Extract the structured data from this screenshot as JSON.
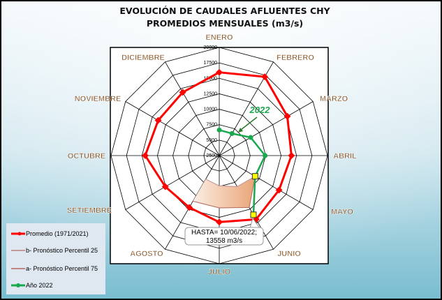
{
  "chart_data": {
    "type": "radar",
    "title": "EVOLUCIÓN DE CAUDALES AFLUENTES CHY",
    "subtitle": "PROMEDIOS MENSUALES (m3/s)",
    "categories": [
      "ENERO",
      "FEBRERO",
      "MARZO",
      "ABRIL",
      "MAYO",
      "JUNIO",
      "JULIO",
      "AGOSTO",
      "SETIEMBRE",
      "OCTUBRE",
      "NOVIEMBRE",
      "DICIEMBRE"
    ],
    "rlim": [
      2500,
      20000
    ],
    "ticks": [
      "2500",
      "5000",
      "7500",
      "10000",
      "12500",
      "15000",
      "17500",
      "20000"
    ],
    "tick_values": [
      2500,
      5000,
      7500,
      10000,
      12500,
      15000,
      17500,
      20000
    ],
    "grid": true,
    "legend_position": "bottom-left",
    "series": [
      {
        "name": "Promedio (1971/2021)",
        "color": "#ff0000",
        "values": [
          15970,
          17220,
          15210,
          14170,
          13660,
          14420,
          13260,
          12190,
          12570,
          14470,
          13900,
          14320
        ]
      },
      {
        "name": "b- Pronóstico Percentil 25",
        "color": "#c49a9a",
        "values": [
          null,
          null,
          null,
          null,
          9200,
          8300,
          7400,
          6900,
          null,
          null,
          null,
          null
        ]
      },
      {
        "name": "a- Pronóstico Percentil 75",
        "color": "#b5655a",
        "values": [
          null,
          null,
          null,
          null,
          9200,
          12200,
          10970,
          11020,
          null,
          null,
          null,
          null
        ]
      },
      {
        "name": "Año 2022",
        "color": "#1aa84f",
        "values": [
          6640,
          6620,
          8370,
          9910,
          9200,
          13558,
          null,
          null,
          null,
          null,
          null,
          null
        ]
      }
    ],
    "annotations": {
      "year_label": "2022",
      "hasta_line1": "HASTA= 10/06/2022;",
      "hasta_line2": "13558 m3/s"
    }
  }
}
